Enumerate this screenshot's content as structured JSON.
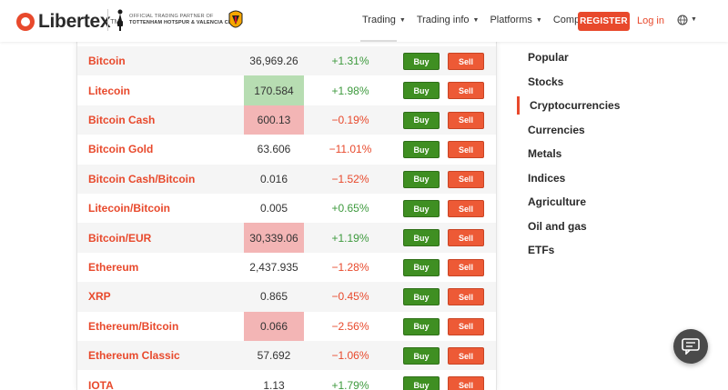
{
  "header": {
    "logo_text": "Libertex",
    "logo_tm": "TM",
    "partner_line1": "OFFICIAL TRADING PARTNER OF",
    "partner_line2": "TOTTENHAM HOTSPUR & VALENCIA CF",
    "nav": [
      {
        "label": "Trading"
      },
      {
        "label": "Trading info"
      },
      {
        "label": "Platforms"
      },
      {
        "label": "Company"
      }
    ],
    "register_label": "REGISTER",
    "login_label": "Log in"
  },
  "instruments": [
    {
      "name": "Bitcoin",
      "price": "36,969.26",
      "change": "+1.31%",
      "highlight": "none",
      "direction": "pos"
    },
    {
      "name": "Litecoin",
      "price": "170.584",
      "change": "+1.98%",
      "highlight": "up",
      "direction": "pos"
    },
    {
      "name": "Bitcoin Cash",
      "price": "600.13",
      "change": "−0.19%",
      "highlight": "down",
      "direction": "neg"
    },
    {
      "name": "Bitcoin Gold",
      "price": "63.606",
      "change": "−11.01%",
      "highlight": "none",
      "direction": "neg"
    },
    {
      "name": "Bitcoin Cash/Bitcoin",
      "price": "0.016",
      "change": "−1.52%",
      "highlight": "none",
      "direction": "neg"
    },
    {
      "name": "Litecoin/Bitcoin",
      "price": "0.005",
      "change": "+0.65%",
      "highlight": "none",
      "direction": "pos"
    },
    {
      "name": "Bitcoin/EUR",
      "price": "30,339.06",
      "change": "+1.19%",
      "highlight": "down",
      "direction": "pos"
    },
    {
      "name": "Ethereum",
      "price": "2,437.935",
      "change": "−1.28%",
      "highlight": "none",
      "direction": "neg"
    },
    {
      "name": "XRP",
      "price": "0.865",
      "change": "−0.45%",
      "highlight": "none",
      "direction": "neg"
    },
    {
      "name": "Ethereum/Bitcoin",
      "price": "0.066",
      "change": "−2.56%",
      "highlight": "down",
      "direction": "neg"
    },
    {
      "name": "Ethereum Classic",
      "price": "57.692",
      "change": "−1.06%",
      "highlight": "none",
      "direction": "neg"
    },
    {
      "name": "IOTA",
      "price": "1.13",
      "change": "+1.79%",
      "highlight": "none",
      "direction": "pos"
    }
  ],
  "buttons": {
    "buy_label": "Buy",
    "sell_label": "Sell"
  },
  "categories": [
    {
      "label": "Popular"
    },
    {
      "label": "Stocks"
    },
    {
      "label": "Cryptocurrencies",
      "active": true
    },
    {
      "label": "Currencies"
    },
    {
      "label": "Metals"
    },
    {
      "label": "Indices"
    },
    {
      "label": "Agriculture"
    },
    {
      "label": "Oil and gas"
    },
    {
      "label": "ETFs"
    }
  ],
  "colors": {
    "accent": "#e8492c",
    "buy": "#3f8f22",
    "sell": "#ed5a36",
    "positive": "#3e9a3e",
    "negative": "#e8492c",
    "highlight_up": "#b7ddb2",
    "highlight_down": "#f3b5b5"
  },
  "icons": {
    "globe": "globe-icon",
    "chat": "chat-icon",
    "club_crest_1": "tottenham-crest-icon",
    "club_crest_2": "valencia-crest-icon"
  }
}
